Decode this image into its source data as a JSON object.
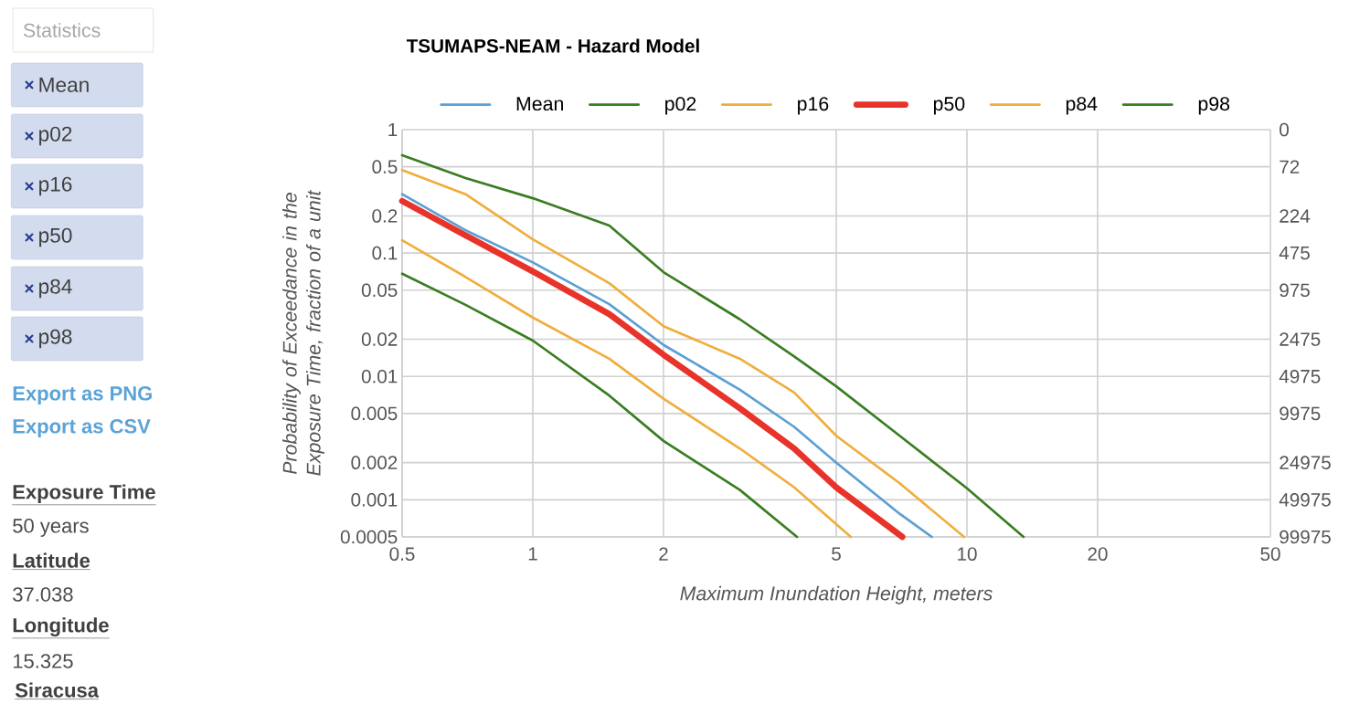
{
  "chart_data": {
    "type": "line",
    "title": "TSUMAPS-NEAM - Hazard Model",
    "xlabel": "Maximum Inundation Height, meters",
    "ylabel": "Probability of Exceedance in the Exposure Time, fraction of a unit",
    "log": "xy",
    "grid": true,
    "legend": "top",
    "marker": "none",
    "line_style": "solid",
    "xlim": [
      0.5,
      50
    ],
    "xticks": [
      0.5,
      1,
      2,
      5,
      10,
      20,
      50
    ],
    "ylim": [
      0.0005,
      1
    ],
    "yticks": [
      1,
      0.5,
      0.2,
      0.1,
      0.05,
      0.02,
      0.01,
      0.005,
      0.002,
      0.001,
      0.0005
    ],
    "series": [
      {
        "name": "Mean",
        "color": "#5b9fd4",
        "x": [
          0.5,
          0.7,
          1,
          1.5,
          2,
          3,
          4,
          5,
          7,
          8.3
        ],
        "values": [
          0.3,
          0.153,
          0.084,
          0.0385,
          0.018,
          0.0078,
          0.0039,
          0.002,
          0.00077,
          0.0005
        ]
      },
      {
        "name": "p02",
        "color": "#3a7d22",
        "x": [
          0.5,
          0.7,
          1,
          1.5,
          2,
          3,
          4.06
        ],
        "values": [
          0.068,
          0.038,
          0.0195,
          0.007,
          0.003,
          0.0012,
          0.0005
        ]
      },
      {
        "name": "p16",
        "color": "#f0ad3c",
        "x": [
          0.5,
          0.7,
          1,
          1.5,
          2,
          3,
          4,
          5.4
        ],
        "values": [
          0.127,
          0.064,
          0.03,
          0.0139,
          0.0066,
          0.0026,
          0.00126,
          0.0005
        ]
      },
      {
        "name": "p50",
        "color": "#e8332a",
        "x": [
          0.5,
          0.7,
          1,
          1.5,
          2,
          3,
          4,
          5,
          7.1
        ],
        "values": [
          0.264,
          0.139,
          0.071,
          0.032,
          0.015,
          0.0055,
          0.0026,
          0.00126,
          0.0005
        ]
      },
      {
        "name": "p84",
        "color": "#f0ad3c",
        "x": [
          0.5,
          0.7,
          1,
          1.5,
          2,
          3,
          4,
          5,
          7,
          9.85
        ],
        "values": [
          0.47,
          0.3,
          0.129,
          0.057,
          0.0255,
          0.0139,
          0.0074,
          0.0033,
          0.00136,
          0.0005
        ]
      },
      {
        "name": "p98",
        "color": "#3a7d22",
        "x": [
          0.5,
          0.7,
          1,
          1.5,
          2,
          3,
          4,
          5,
          7,
          10,
          13.5
        ],
        "values": [
          0.62,
          0.405,
          0.278,
          0.167,
          0.07,
          0.029,
          0.0145,
          0.0083,
          0.0033,
          0.00124,
          0.0005
        ]
      }
    ],
    "annotations": [
      "Statistics",
      "Mean",
      "p02",
      "p16",
      "p50",
      "p84",
      "p98",
      "Export as PNG",
      "Export as CSV",
      "Exposure Time",
      "50 years",
      "Latitude",
      "37.038",
      "Longitude",
      "15.325",
      "Siracusa",
      "0",
      "72",
      "224",
      "475",
      "975",
      "2475",
      "4975",
      "9975",
      "24975",
      "49975",
      "99975"
    ]
  }
}
